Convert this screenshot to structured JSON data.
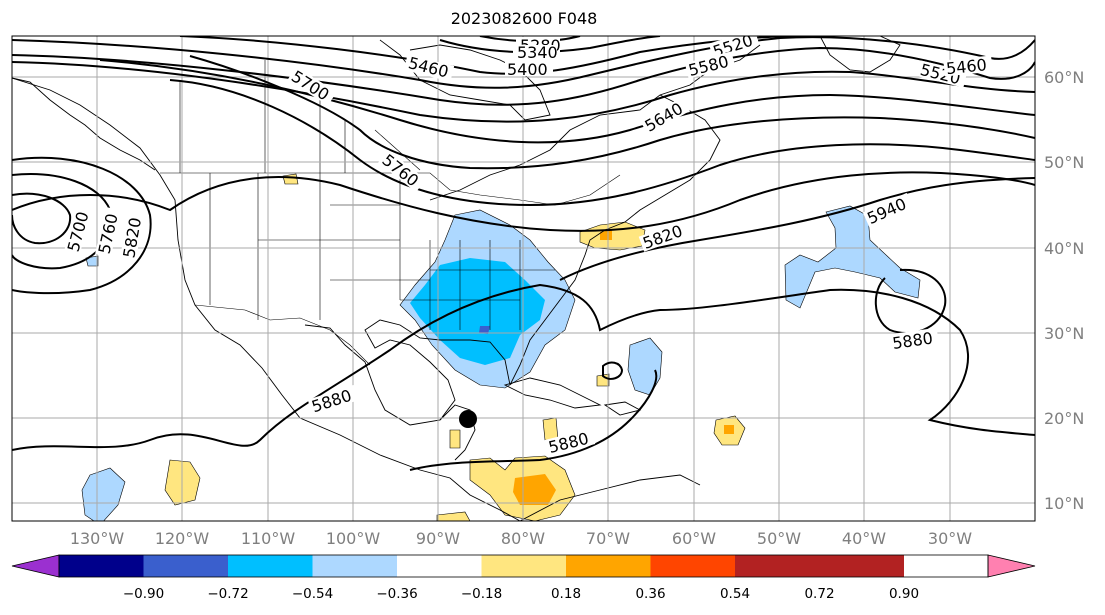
{
  "title": "2023082600 F048",
  "latitude_labels": [
    "60°N",
    "50°N",
    "40°N",
    "30°N",
    "20°N",
    "10°N"
  ],
  "longitude_labels": [
    "130°W",
    "120°W",
    "110°W",
    "100°W",
    "90°W",
    "80°W",
    "70°W",
    "60°W",
    "50°W",
    "40°W",
    "30°W"
  ],
  "contour_labels": [
    {
      "text": "5280"
    },
    {
      "text": "5340"
    },
    {
      "text": "5460"
    },
    {
      "text": "5400"
    },
    {
      "text": "5520"
    },
    {
      "text": "5580"
    },
    {
      "text": "5700"
    },
    {
      "text": "5640"
    },
    {
      "text": "5760"
    },
    {
      "text": "5820"
    },
    {
      "text": "5940"
    },
    {
      "text": "5880"
    },
    {
      "text": "5700"
    },
    {
      "text": "5760"
    },
    {
      "text": "5820"
    },
    {
      "text": "5880"
    },
    {
      "text": "5880"
    },
    {
      "text": "5520"
    },
    {
      "text": "5460"
    }
  ],
  "colorbar": {
    "labels": [
      "−0.90",
      "−0.72",
      "−0.54",
      "−0.36",
      "−0.18",
      "0.18",
      "0.36",
      "0.54",
      "0.72",
      "0.90"
    ],
    "colors": [
      "#9b30d0",
      "#00008b",
      "#3a5fcd",
      "#00bfff",
      "#add8ff",
      "#ffffff",
      "#ffe680",
      "#ffa500",
      "#ff4500",
      "#b22222",
      "#ff80b0"
    ]
  },
  "colors": {
    "contour": "#000000",
    "grid": "#aaaaaa",
    "tick_label": "#7f7f7f",
    "coast": "#000000"
  }
}
